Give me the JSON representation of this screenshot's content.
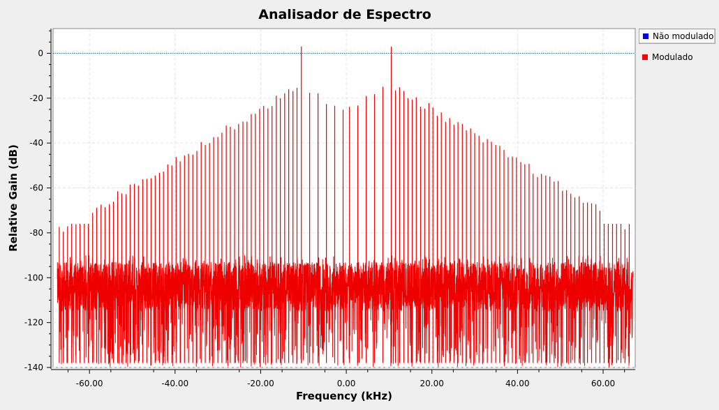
{
  "window": {
    "title": "Analisador de Espectro"
  },
  "legend": {
    "items": [
      {
        "label": "Não modulado",
        "color": "#0000ff",
        "selected": true
      },
      {
        "label": "Modulado",
        "color": "#ff0000",
        "selected": false
      }
    ]
  },
  "chart_data": {
    "type": "line",
    "title": "Analisador de Espectro",
    "xlabel": "Frequency (kHz)",
    "ylabel": "Relative Gain (dB)",
    "xlim": [
      -68.5,
      67.5
    ],
    "ylim": [
      -140,
      11
    ],
    "x_ticks": [
      -60,
      -40,
      -20,
      0,
      20,
      40,
      60
    ],
    "x_tick_labels": [
      "-60.00",
      "-40.00",
      "-20.00",
      "0.00",
      "20.00",
      "40.00",
      "60.00"
    ],
    "y_ticks": [
      0,
      -20,
      -40,
      -60,
      -80,
      -100,
      -120,
      -140
    ],
    "y_tick_labels": [
      "0",
      "-20",
      "-40",
      "-60",
      "-80",
      "-100",
      "-120",
      "-140"
    ],
    "grid": true,
    "legend_position": "right",
    "series": [
      {
        "name": "Não modulado",
        "color": "#0000ff",
        "style": "dotted",
        "x": [
          -68.5,
          67.5
        ],
        "y": [
          0,
          0
        ]
      },
      {
        "name": "Modulado",
        "color": "#ff0000",
        "style": "line",
        "range_khz": [
          -67.5,
          67.0
        ],
        "noise_floor_db": [
          -140,
          -100
        ],
        "spurs_db_by_offset_from_carrier_khz": [
          {
            "khz": -10.5,
            "db": 3
          },
          {
            "khz": 10.5,
            "db": 3
          },
          {
            "khz": -11.5,
            "db": -13
          },
          {
            "khz": 11.5,
            "db": -13
          },
          {
            "khz": -13.0,
            "db": -25
          },
          {
            "khz": 13.0,
            "db": -25
          },
          {
            "khz": -66.5,
            "db": -76
          },
          {
            "khz": 66.5,
            "db": -76
          }
        ]
      }
    ]
  }
}
